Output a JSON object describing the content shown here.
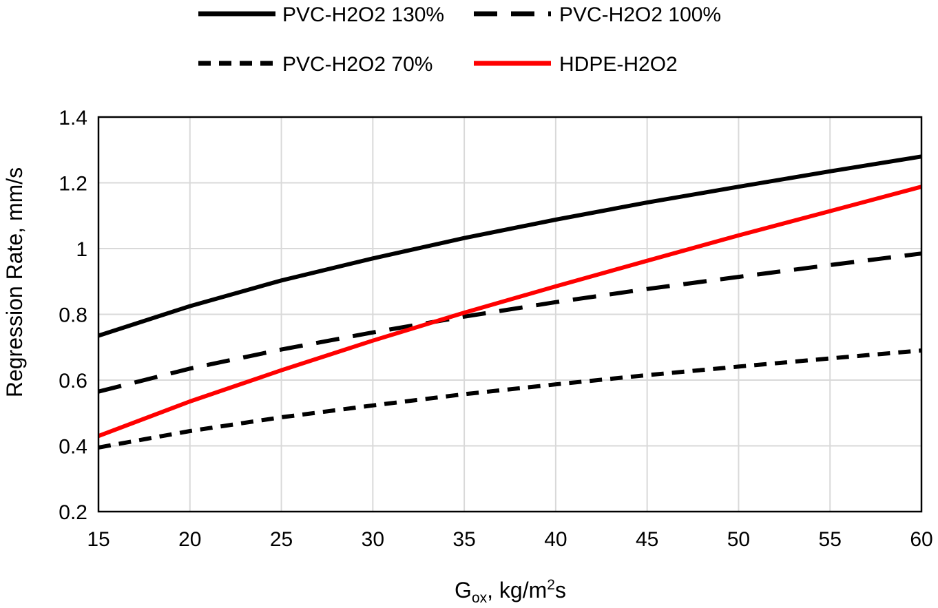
{
  "chart_data": {
    "type": "line",
    "title": "",
    "xlabel": {
      "base": "G",
      "subscript": "ox",
      "middle": ", kg/m",
      "superscript": "2",
      "tail": "s"
    },
    "ylabel": "Regression Rate, mm/s",
    "xlim": [
      15,
      60
    ],
    "ylim": [
      0.2,
      1.4
    ],
    "xticks": [
      15,
      20,
      25,
      30,
      35,
      40,
      45,
      50,
      55,
      60
    ],
    "yticks": [
      0.2,
      0.4,
      0.6,
      0.8,
      1,
      1.2,
      1.4
    ],
    "xtick_labels": [
      "15",
      "20",
      "25",
      "30",
      "35",
      "40",
      "45",
      "50",
      "55",
      "60"
    ],
    "ytick_labels": [
      "0.2",
      "0.4",
      "0.6",
      "0.8",
      "1",
      "1.2",
      "1.4"
    ],
    "grid": true,
    "legend_position": "top",
    "series": [
      {
        "name": "PVC-H2O2 130%",
        "color": "#000000",
        "style": "solid",
        "x": [
          15,
          20,
          25,
          30,
          35,
          40,
          45,
          50,
          55,
          60
        ],
        "values": [
          0.735,
          0.825,
          0.903,
          0.97,
          1.032,
          1.088,
          1.14,
          1.188,
          1.235,
          1.28
        ]
      },
      {
        "name": "PVC-H2O2 100%",
        "color": "#000000",
        "style": "long-dash",
        "x": [
          15,
          20,
          25,
          30,
          35,
          40,
          45,
          50,
          55,
          60
        ],
        "values": [
          0.565,
          0.635,
          0.693,
          0.745,
          0.793,
          0.837,
          0.877,
          0.914,
          0.95,
          0.985
        ]
      },
      {
        "name": "PVC-H2O2 70%",
        "color": "#000000",
        "style": "short-dash",
        "x": [
          15,
          20,
          25,
          30,
          35,
          40,
          45,
          50,
          55,
          60
        ],
        "values": [
          0.395,
          0.445,
          0.487,
          0.523,
          0.557,
          0.587,
          0.615,
          0.641,
          0.666,
          0.69
        ]
      },
      {
        "name": "HDPE-H2O2",
        "color": "#ff0000",
        "style": "solid",
        "x": [
          15,
          20,
          25,
          30,
          35,
          40,
          45,
          50,
          55,
          60
        ],
        "values": [
          0.43,
          0.535,
          0.63,
          0.72,
          0.805,
          0.885,
          0.963,
          1.04,
          1.114,
          1.188
        ]
      }
    ]
  }
}
